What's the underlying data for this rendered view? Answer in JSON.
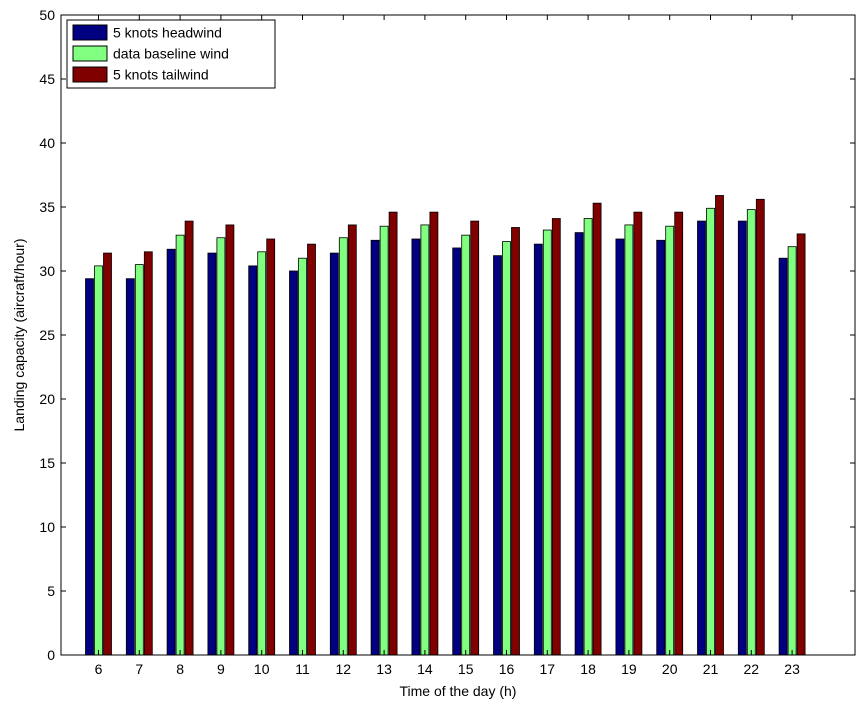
{
  "chart_data": {
    "type": "bar",
    "title": "",
    "xlabel": "Time of the day (h)",
    "ylabel": "Landing capacity (aircraft/hour)",
    "ylim": [
      0,
      50
    ],
    "yticks": [
      0,
      5,
      10,
      15,
      20,
      25,
      30,
      35,
      40,
      45,
      50
    ],
    "categories": [
      "6",
      "7",
      "8",
      "9",
      "10",
      "11",
      "12",
      "13",
      "14",
      "15",
      "16",
      "17",
      "18",
      "19",
      "20",
      "21",
      "22",
      "23"
    ],
    "grid": false,
    "legend_position": "top-left",
    "series": [
      {
        "name": "5 knots headwind",
        "color": "#000080",
        "values": [
          29.4,
          29.4,
          31.7,
          31.4,
          30.4,
          30.0,
          31.4,
          32.4,
          32.5,
          31.8,
          31.2,
          32.1,
          33.0,
          32.5,
          32.4,
          33.9,
          33.9,
          31.0
        ]
      },
      {
        "name": "data baseline wind",
        "color": "#80FF80",
        "values": [
          30.4,
          30.5,
          32.8,
          32.6,
          31.5,
          31.0,
          32.6,
          33.5,
          33.6,
          32.8,
          32.3,
          33.2,
          34.1,
          33.6,
          33.5,
          34.9,
          34.8,
          31.9
        ]
      },
      {
        "name": "5 knots tailwind",
        "color": "#800000",
        "values": [
          31.4,
          31.5,
          33.9,
          33.6,
          32.5,
          32.1,
          33.6,
          34.6,
          34.6,
          33.9,
          33.4,
          34.1,
          35.3,
          34.6,
          34.6,
          35.9,
          35.6,
          32.9
        ]
      }
    ]
  }
}
